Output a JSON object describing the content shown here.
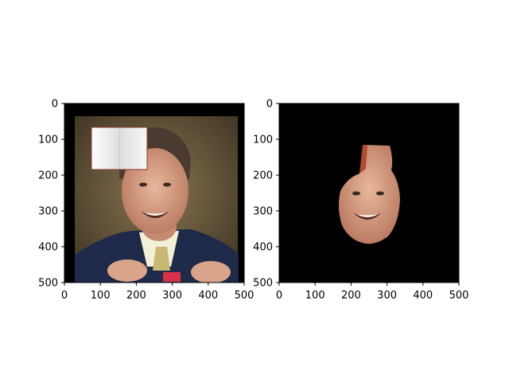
{
  "chart_data": [
    {
      "type": "image",
      "panel": "left",
      "description_hidden": true,
      "xlim": [
        0,
        500
      ],
      "ylim": [
        500,
        0
      ],
      "xticks": [
        0,
        100,
        200,
        300,
        400,
        500
      ],
      "yticks": [
        0,
        100,
        200,
        300,
        400,
        500
      ],
      "xtick_labels": [
        "0",
        "100",
        "200",
        "300",
        "400",
        "500"
      ],
      "ytick_labels": [
        "0",
        "100",
        "200",
        "300",
        "400",
        "500"
      ],
      "frame_color": "#000000",
      "image_region": {
        "x": [
          30,
          485
        ],
        "y": [
          35,
          500
        ]
      },
      "occluder_patch": {
        "x": [
          78,
          232
        ],
        "y": [
          68,
          185
        ],
        "color": "#f2f2f2"
      },
      "title": "",
      "xlabel": "",
      "ylabel": ""
    },
    {
      "type": "image",
      "panel": "right",
      "xlim": [
        0,
        500
      ],
      "ylim": [
        500,
        0
      ],
      "xticks": [
        0,
        100,
        200,
        300,
        400,
        500
      ],
      "yticks": [
        0,
        100,
        200,
        300,
        400,
        500
      ],
      "xtick_labels": [
        "0",
        "100",
        "200",
        "300",
        "400",
        "500"
      ],
      "ytick_labels": [
        "0",
        "100",
        "200",
        "300",
        "400",
        "500"
      ],
      "background_color": "#000000",
      "mask_region": {
        "x": [
          165,
          340
        ],
        "y": [
          115,
          395
        ]
      },
      "title": "",
      "xlabel": "",
      "ylabel": ""
    }
  ],
  "colors": {
    "skin": "#d9a48a",
    "hair": "#4a3a30",
    "suit": "#1f2a4a",
    "background_left": "#6b5a3a",
    "mask_bg": "#000000"
  }
}
